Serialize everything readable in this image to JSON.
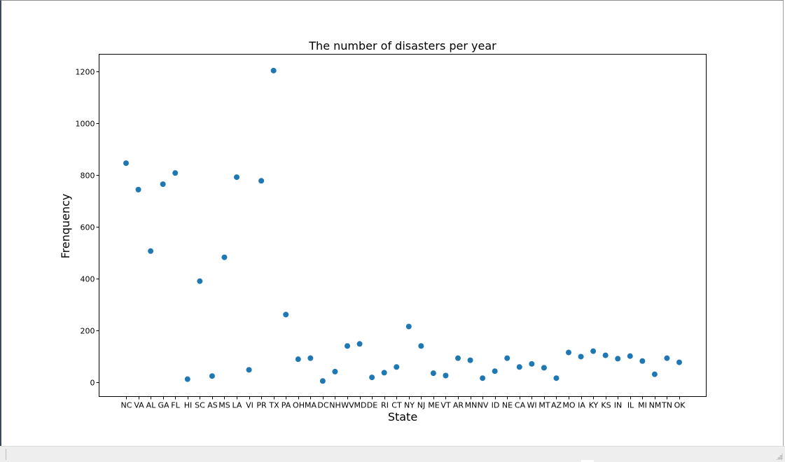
{
  "chart_data": {
    "type": "scatter",
    "title": "The number of disasters per year",
    "xlabel": "State",
    "ylabel": "Frenquency",
    "categories": [
      "NC",
      "VA",
      "AL",
      "GA",
      "FL",
      "HI",
      "SC",
      "AS",
      "MS",
      "LA",
      "VI",
      "PR",
      "TX",
      "PA",
      "OH",
      "MA",
      "DC",
      "NH",
      "WV",
      "MD",
      "DE",
      "RI",
      "CT",
      "NY",
      "NJ",
      "ME",
      "VT",
      "AR",
      "MN",
      "NV",
      "ID",
      "NE",
      "CA",
      "WI",
      "MT",
      "AZ",
      "MO",
      "IA",
      "KY",
      "KS",
      "IN",
      "IL",
      "MI",
      "NM",
      "TN",
      "OK"
    ],
    "values": [
      845,
      743,
      506,
      764,
      807,
      12,
      390,
      24,
      482,
      791,
      48,
      777,
      1202,
      261,
      89,
      93,
      5,
      41,
      140,
      148,
      19,
      37,
      59,
      215,
      140,
      35,
      26,
      93,
      85,
      16,
      43,
      93,
      59,
      71,
      56,
      16,
      115,
      99,
      120,
      104,
      91,
      101,
      82,
      31,
      93,
      77
    ],
    "ylim": [
      -55,
      1265
    ],
    "yticks": [
      0,
      200,
      400,
      600,
      800,
      1000,
      1200
    ],
    "grid": false,
    "legend": "none",
    "color": "#1f77b4"
  }
}
